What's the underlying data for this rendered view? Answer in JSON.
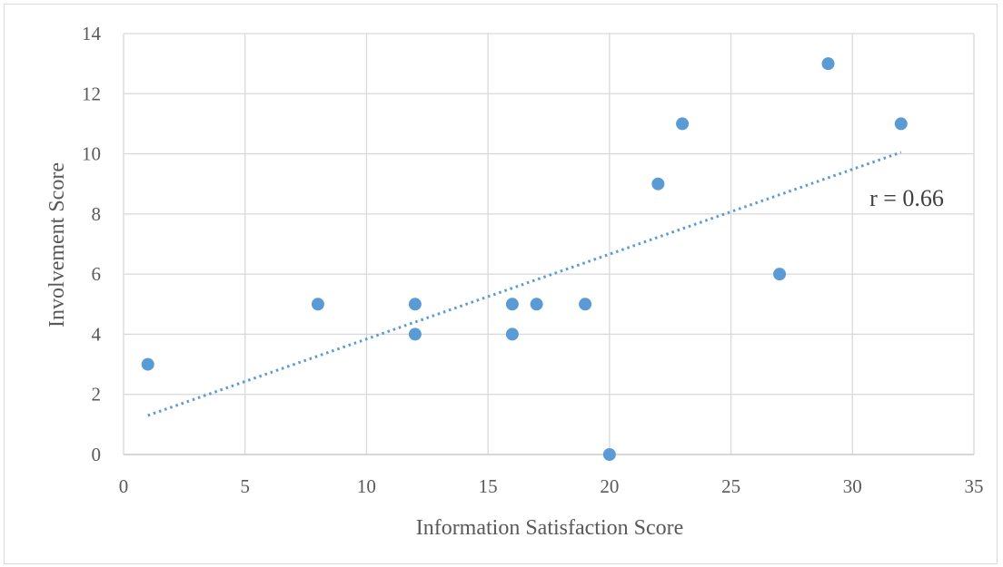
{
  "chart_data": {
    "type": "scatter",
    "title": "",
    "xlabel": "Information Satisfaction Score",
    "ylabel": "Involvement Score",
    "xlim": [
      0,
      35
    ],
    "ylim": [
      0,
      14
    ],
    "x_ticks": [
      0,
      5,
      10,
      15,
      20,
      25,
      30,
      35
    ],
    "y_ticks": [
      0,
      2,
      4,
      6,
      8,
      10,
      12,
      14
    ],
    "grid": true,
    "legend": "none",
    "series": [
      {
        "color": "#5b9bd5",
        "points": [
          {
            "x": 1,
            "y": 3
          },
          {
            "x": 8,
            "y": 5
          },
          {
            "x": 12,
            "y": 5
          },
          {
            "x": 12,
            "y": 4
          },
          {
            "x": 16,
            "y": 5
          },
          {
            "x": 16,
            "y": 4
          },
          {
            "x": 17,
            "y": 5
          },
          {
            "x": 19,
            "y": 5
          },
          {
            "x": 20,
            "y": 0
          },
          {
            "x": 22,
            "y": 9
          },
          {
            "x": 23,
            "y": 11
          },
          {
            "x": 27,
            "y": 6
          },
          {
            "x": 29,
            "y": 13
          },
          {
            "x": 32,
            "y": 11
          }
        ]
      }
    ],
    "trendline": {
      "type": "linear",
      "style": "dotted",
      "color": "#5b9bd5",
      "start": {
        "x": 1,
        "y": 1.3
      },
      "end": {
        "x": 32,
        "y": 10.05
      }
    },
    "annotation": {
      "text": "r = 0.66"
    }
  }
}
